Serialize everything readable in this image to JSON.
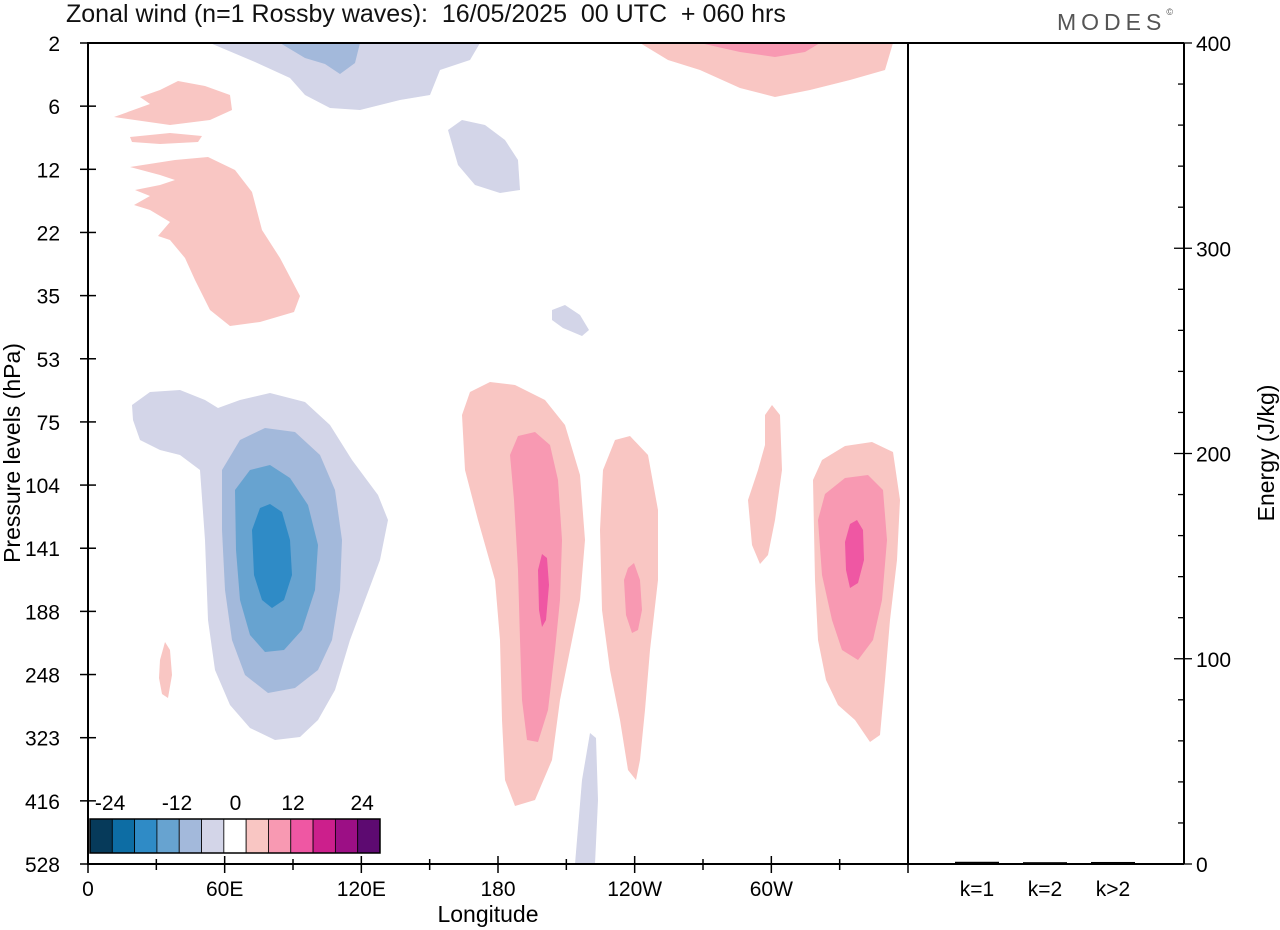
{
  "title": "Zonal wind (n=1 Rossby waves):  16/05/2025  00 UTC  + 060 hrs",
  "brand": "MODES",
  "brand_mark": "©",
  "colors": {
    "blue_levels": [
      "#063a5a",
      "#0d6da4",
      "#2f8bc6",
      "#67a3d0",
      "#a3b9db",
      "#d3d5e8"
    ],
    "white": "#ffffff",
    "red_levels": [
      "#f9c6c3",
      "#f899b2",
      "#ef57a3",
      "#cc1f8c",
      "#9c0f85",
      "#5d0a71"
    ]
  },
  "chart_data": [
    {
      "type": "heatmap",
      "title": "",
      "xlabel": "Longitude",
      "ylabel": "Pressure levels (hPa)",
      "x_ticks": [
        "0",
        "60E",
        "120E",
        "180",
        "120W",
        "60W"
      ],
      "y_ticks": [
        "2",
        "6",
        "12",
        "22",
        "35",
        "53",
        "75",
        "104",
        "141",
        "188",
        "248",
        "323",
        "416",
        "528"
      ],
      "colorbar": {
        "labels": [
          "-24",
          "-12",
          "0",
          "12",
          "24"
        ],
        "levels": [
          -30,
          -25,
          -20,
          -15,
          -10,
          -5,
          0,
          5,
          10,
          15,
          20,
          25,
          30
        ]
      },
      "features": [
        {
          "sign": "positive",
          "lon": 28,
          "level": "6",
          "max_value": 6
        },
        {
          "sign": "positive",
          "lon": 38,
          "level": "22",
          "max_value": 6
        },
        {
          "sign": "negative",
          "lon": 110,
          "level": "2",
          "min_value": -12
        },
        {
          "sign": "negative",
          "lon": 155,
          "level": "10",
          "min_value": -6
        },
        {
          "sign": "negative",
          "lon": 80,
          "level": "141",
          "min_value": -24
        },
        {
          "sign": "positive",
          "lon": 193,
          "level": "160",
          "max_value": 18
        },
        {
          "sign": "positive",
          "lon": 240,
          "level": "160",
          "max_value": 12
        },
        {
          "sign": "positive",
          "lon": 328,
          "level": "141",
          "max_value": 18
        },
        {
          "sign": "positive",
          "lon": 280,
          "level": "2",
          "max_value": 12
        }
      ]
    },
    {
      "type": "bar",
      "title": "",
      "xlabel": "",
      "ylabel": "Energy (J/kg)",
      "categories": [
        "k=1",
        "k=2",
        "k>2"
      ],
      "values": [
        0.6,
        0.4,
        0.5
      ],
      "ylim": [
        0,
        400
      ],
      "y_ticks": [
        "0",
        "100",
        "200",
        "300",
        "400"
      ]
    }
  ]
}
